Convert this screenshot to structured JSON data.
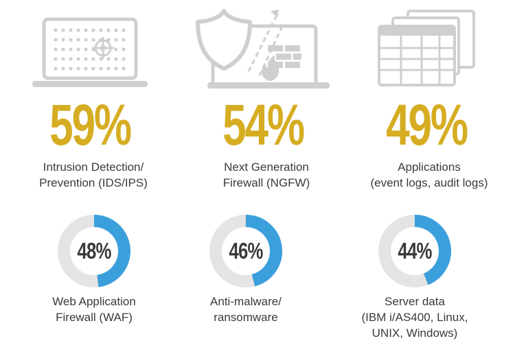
{
  "colors": {
    "gold": "#d6ad22",
    "blue": "#3b9fdc",
    "track": "#e4e4e4",
    "icon": "#cfcfcf",
    "text": "#3a3a3a"
  },
  "chart_data": {
    "type": "donut",
    "stats": [
      {
        "value": 59,
        "display": "59%",
        "label_lines": [
          "Intrusion Detection/",
          "Prevention (IDS/IPS)"
        ],
        "icon": "laptop-target-icon"
      },
      {
        "value": 54,
        "display": "54%",
        "label_lines": [
          "Next Generation",
          "Firewall (NGFW)"
        ],
        "icon": "shield-firewall-icon"
      },
      {
        "value": 49,
        "display": "49%",
        "label_lines": [
          "Applications",
          "(event logs, audit logs)"
        ],
        "icon": "spreadsheet-icon"
      }
    ],
    "donuts": [
      {
        "value": 48,
        "display": "48%",
        "label_lines": [
          "Web Application",
          "Firewall (WAF)"
        ]
      },
      {
        "value": 46,
        "display": "46%",
        "label_lines": [
          "Anti-malware/",
          "ransomware"
        ]
      },
      {
        "value": 44,
        "display": "44%",
        "label_lines": [
          "Server data",
          "(IBM i/AS400, Linux,",
          "UNIX, Windows)"
        ]
      }
    ]
  }
}
